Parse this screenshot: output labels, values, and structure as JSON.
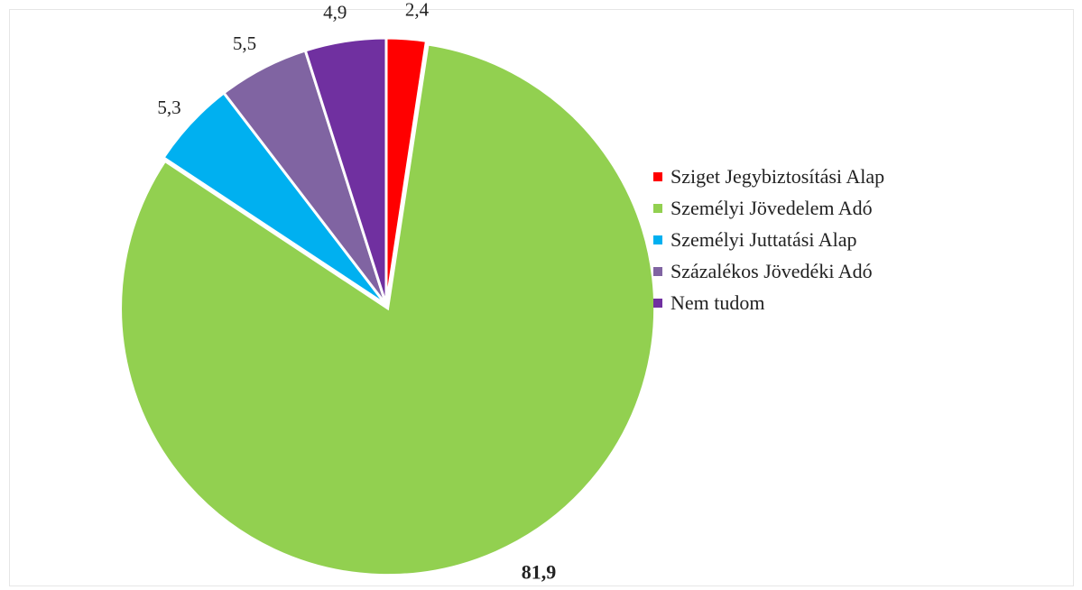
{
  "chart_data": {
    "type": "pie",
    "title": "",
    "slices": [
      {
        "label": "Sziget Jegybiztosítási Alap",
        "value": 2.4,
        "value_label": "2,4",
        "color": "#ff0000"
      },
      {
        "label": "Személyi Jövedelem Adó",
        "value": 81.9,
        "value_label": "81,9",
        "color": "#92d050"
      },
      {
        "label": "Személyi Juttatási Alap",
        "value": 5.3,
        "value_label": "5,3",
        "color": "#00b0f0"
      },
      {
        "label": "Százalékos Jövedéki Adó",
        "value": 5.5,
        "value_label": "5,5",
        "color": "#8064a2"
      },
      {
        "label": "Nem tudom",
        "value": 4.9,
        "value_label": "4,9",
        "color": "#7030a0"
      }
    ],
    "legend_position": "right",
    "start_angle": "12 o'clock",
    "direction": "clockwise"
  }
}
